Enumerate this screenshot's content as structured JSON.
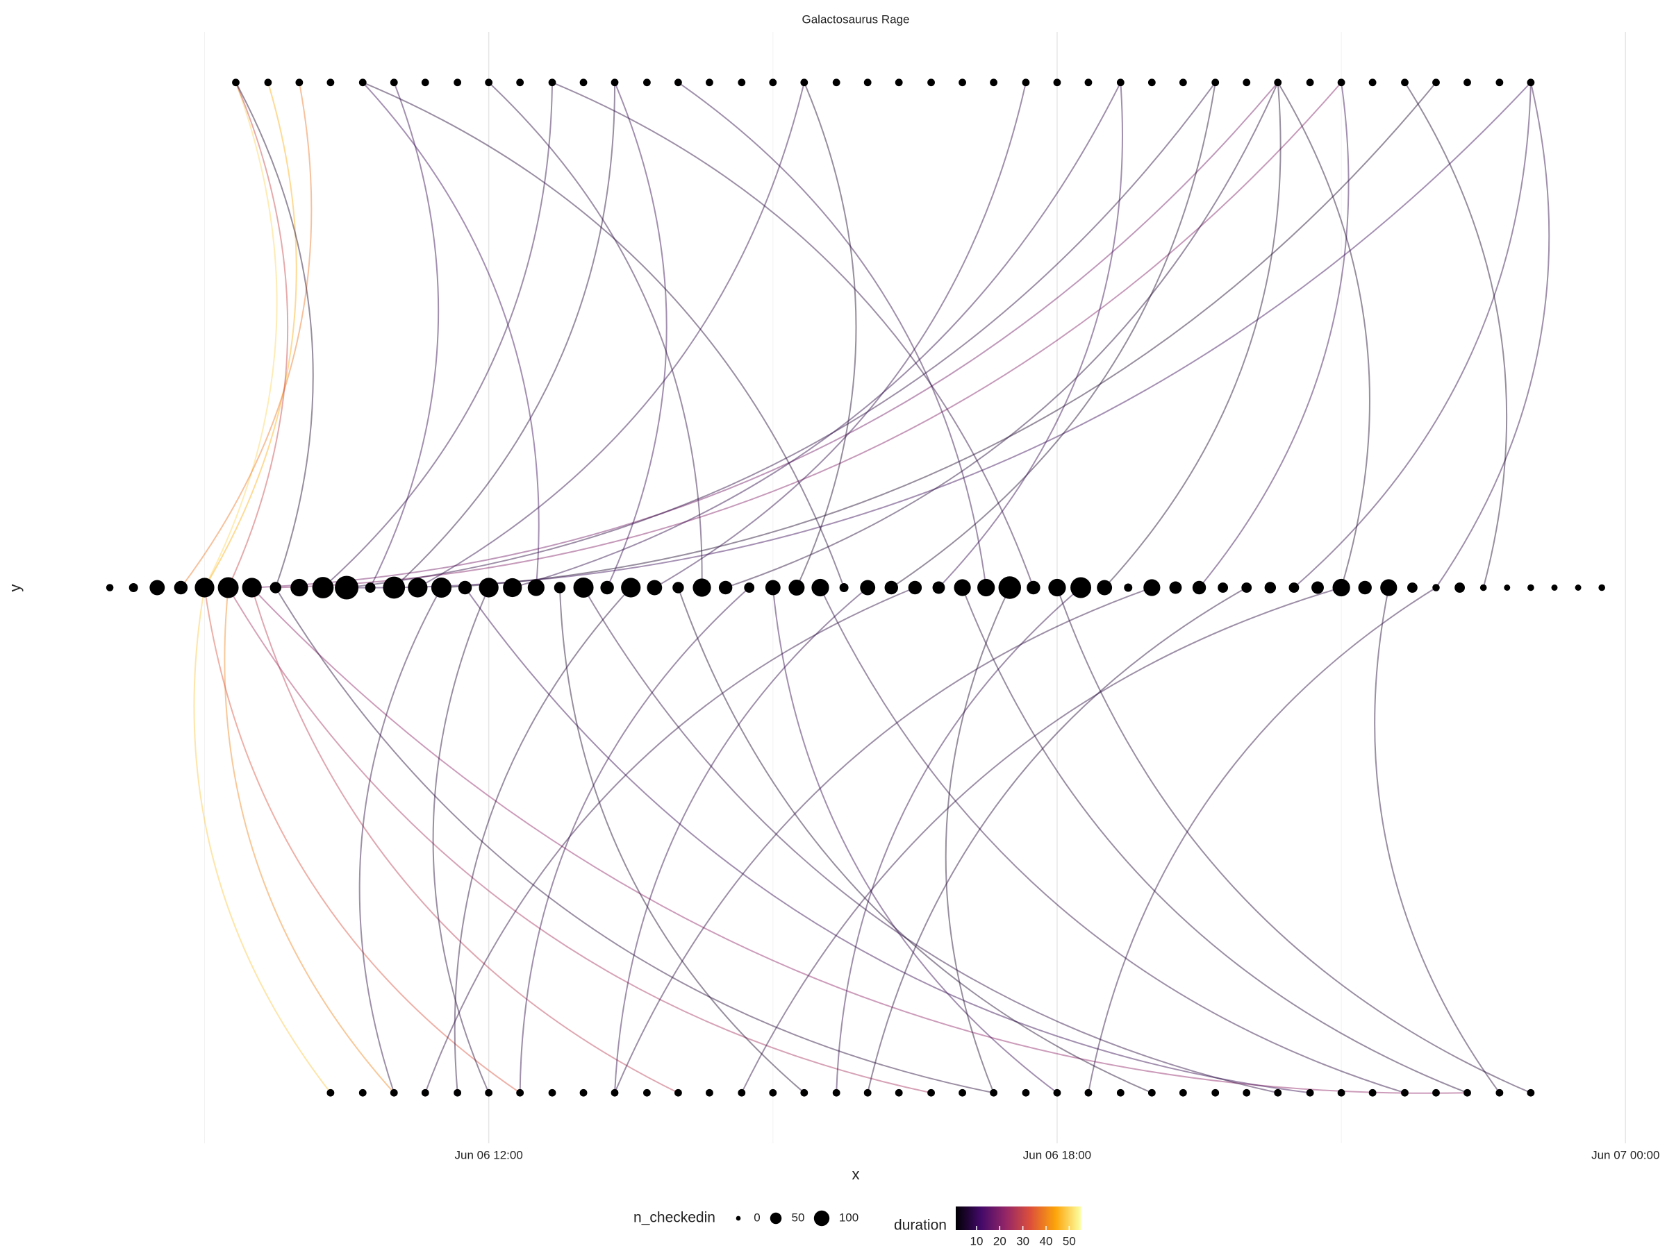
{
  "chart_data": {
    "type": "arc",
    "title": "Galactosaurus Rage",
    "x_label": "x",
    "y_label": "y",
    "xlim": [
      7.2,
      24.35
    ],
    "ylim": [
      -1.1,
      1.1
    ],
    "xticks": [
      {
        "value": 12,
        "label": "Jun 06 12:00"
      },
      {
        "value": 18,
        "label": "Jun 06 18:00"
      },
      {
        "value": 24,
        "label": "Jun 07 00:00"
      }
    ],
    "x_minor_grid": [
      9,
      15,
      21
    ],
    "grid": true,
    "point_color": "#000000",
    "nodes": {
      "middle": {
        "y": 0,
        "x": [
          8,
          8.25,
          8.5,
          8.75,
          9,
          9.25,
          9.5,
          9.75,
          10,
          10.25,
          10.5,
          10.75,
          11,
          11.25,
          11.5,
          11.75,
          12,
          12.25,
          12.5,
          12.75,
          13,
          13.25,
          13.5,
          13.75,
          14,
          14.25,
          14.5,
          14.75,
          15,
          15.25,
          15.5,
          15.75,
          16,
          16.25,
          16.5,
          16.75,
          17,
          17.25,
          17.5,
          17.75,
          18,
          18.25,
          18.5,
          18.75,
          19,
          19.25,
          19.5,
          19.75,
          20,
          20.25,
          20.5,
          20.75,
          21,
          21.25,
          21.5,
          21.75,
          22,
          22.25,
          22.5,
          22.75,
          23,
          23.25,
          23.5,
          23.75
        ],
        "size": [
          8,
          17,
          66,
          50,
          116,
          132,
          116,
          33,
          91,
          140,
          173,
          25,
          149,
          116,
          124,
          50,
          116,
          107,
          83,
          33,
          124,
          50,
          116,
          66,
          33,
          99,
          50,
          25,
          66,
          74,
          91,
          17,
          66,
          50,
          50,
          41,
          83,
          91,
          157,
          50,
          91,
          132,
          66,
          13,
          83,
          41,
          50,
          25,
          25,
          33,
          25,
          41,
          91,
          50,
          83,
          25,
          8,
          25,
          5,
          3,
          5,
          3,
          3,
          5
        ]
      },
      "top": {
        "y": 1,
        "x": [
          9.33,
          9.67,
          10,
          10.33,
          10.67,
          11,
          11.33,
          11.67,
          12,
          12.33,
          12.67,
          13,
          13.33,
          13.67,
          14,
          14.33,
          14.67,
          15,
          15.33,
          15.67,
          16,
          16.33,
          16.67,
          17,
          17.33,
          17.67,
          18,
          18.33,
          18.67,
          19,
          19.33,
          19.67,
          20,
          20.33,
          20.67,
          21,
          21.33,
          21.67,
          22,
          22.33,
          22.67,
          23
        ]
      },
      "bottom": {
        "y": -1,
        "x": [
          10.33,
          10.67,
          11,
          11.33,
          11.67,
          12,
          12.33,
          12.67,
          13,
          13.33,
          13.67,
          14,
          14.33,
          14.67,
          15,
          15.33,
          15.67,
          16,
          16.33,
          16.67,
          17,
          17.33,
          17.67,
          18,
          18.33,
          18.67,
          19,
          19.33,
          19.67,
          20,
          20.33,
          20.67,
          21,
          21.33,
          21.67,
          22,
          22.33,
          22.67,
          23
        ]
      }
    },
    "edges": [
      {
        "from": 9,
        "to": 9.33,
        "y": 1,
        "duration": 50
      },
      {
        "from": 9,
        "to": 9.67,
        "y": 1,
        "duration": 45
      },
      {
        "from": 8.75,
        "to": 10,
        "y": 1,
        "duration": 38
      },
      {
        "from": 9.25,
        "to": 9.33,
        "y": 1,
        "duration": 30
      },
      {
        "from": 9,
        "to": 10.33,
        "y": -1,
        "duration": 48
      },
      {
        "from": 9.25,
        "to": 11,
        "y": -1,
        "duration": 40
      },
      {
        "from": 9,
        "to": 12.33,
        "y": -1,
        "duration": 33
      },
      {
        "from": 9.5,
        "to": 14,
        "y": -1,
        "duration": 28
      },
      {
        "from": 9.25,
        "to": 16.67,
        "y": -1,
        "duration": 25
      },
      {
        "from": 9.5,
        "to": 22.33,
        "y": -1,
        "duration": 22
      },
      {
        "from": 9.75,
        "to": 21,
        "y": 1,
        "duration": 20
      },
      {
        "from": 9.5,
        "to": 20.33,
        "y": 1,
        "duration": 18
      },
      {
        "from": 9.75,
        "to": 9.33,
        "y": 1,
        "duration": 5
      },
      {
        "from": 9.75,
        "to": 17.33,
        "y": -1,
        "duration": 6
      },
      {
        "from": 10.25,
        "to": 12.67,
        "y": 1,
        "duration": 8
      },
      {
        "from": 10.5,
        "to": 19.67,
        "y": 1,
        "duration": 7
      },
      {
        "from": 10.5,
        "to": 23,
        "y": 1,
        "duration": 10
      },
      {
        "from": 10.75,
        "to": 11,
        "y": 1,
        "duration": 9
      },
      {
        "from": 11,
        "to": 13.33,
        "y": 1,
        "duration": 6
      },
      {
        "from": 11.25,
        "to": 15.33,
        "y": 1,
        "duration": 8
      },
      {
        "from": 11.5,
        "to": 22,
        "y": 1,
        "duration": 5
      },
      {
        "from": 11.5,
        "to": 11,
        "y": -1,
        "duration": 7
      },
      {
        "from": 11.75,
        "to": 20.67,
        "y": -1,
        "duration": 9
      },
      {
        "from": 12,
        "to": 12,
        "y": -1,
        "duration": 6
      },
      {
        "from": 12.25,
        "to": 18.67,
        "y": 1,
        "duration": 8
      },
      {
        "from": 12.5,
        "to": 10.67,
        "y": 1,
        "duration": 10
      },
      {
        "from": 12.75,
        "to": 15.33,
        "y": -1,
        "duration": 5
      },
      {
        "from": 13,
        "to": 20.33,
        "y": -1,
        "duration": 7
      },
      {
        "from": 13.25,
        "to": 13.33,
        "y": 1,
        "duration": 9
      },
      {
        "from": 13.5,
        "to": 11.67,
        "y": -1,
        "duration": 6
      },
      {
        "from": 13.75,
        "to": 17.67,
        "y": 1,
        "duration": 8
      },
      {
        "from": 14,
        "to": 19,
        "y": -1,
        "duration": 5
      },
      {
        "from": 14.25,
        "to": 12,
        "y": 1,
        "duration": 7
      },
      {
        "from": 14.5,
        "to": 20.33,
        "y": 1,
        "duration": 6
      },
      {
        "from": 14.75,
        "to": 12.33,
        "y": -1,
        "duration": 8
      },
      {
        "from": 15,
        "to": 18,
        "y": -1,
        "duration": 9
      },
      {
        "from": 15.25,
        "to": 15.33,
        "y": 1,
        "duration": 5
      },
      {
        "from": 15.5,
        "to": 21.67,
        "y": -1,
        "duration": 7
      },
      {
        "from": 15.75,
        "to": 10.67,
        "y": 1,
        "duration": 6
      },
      {
        "from": 16,
        "to": 13.33,
        "y": -1,
        "duration": 8
      },
      {
        "from": 16.25,
        "to": 19.67,
        "y": 1,
        "duration": 5
      },
      {
        "from": 16.5,
        "to": 11.33,
        "y": -1,
        "duration": 7
      },
      {
        "from": 16.75,
        "to": 18.67,
        "y": 1,
        "duration": 9
      },
      {
        "from": 17,
        "to": 22.33,
        "y": -1,
        "duration": 6
      },
      {
        "from": 17.25,
        "to": 14,
        "y": 1,
        "duration": 8
      },
      {
        "from": 17.5,
        "to": 17.33,
        "y": -1,
        "duration": 5
      },
      {
        "from": 17.75,
        "to": 12.67,
        "y": 1,
        "duration": 7
      },
      {
        "from": 18,
        "to": 23,
        "y": -1,
        "duration": 6
      },
      {
        "from": 18.25,
        "to": 15.67,
        "y": -1,
        "duration": 8
      },
      {
        "from": 18.5,
        "to": 20.33,
        "y": 1,
        "duration": 5
      },
      {
        "from": 19,
        "to": 13.33,
        "y": -1,
        "duration": 7
      },
      {
        "from": 19.5,
        "to": 21,
        "y": 1,
        "duration": 9
      },
      {
        "from": 20,
        "to": 16,
        "y": -1,
        "duration": 6
      },
      {
        "from": 20.5,
        "to": 23,
        "y": 1,
        "duration": 8
      },
      {
        "from": 21,
        "to": 20.33,
        "y": 1,
        "duration": 5
      },
      {
        "from": 21,
        "to": 14.67,
        "y": -1,
        "duration": 7
      },
      {
        "from": 21.5,
        "to": 22.67,
        "y": -1,
        "duration": 6
      },
      {
        "from": 22,
        "to": 23,
        "y": 1,
        "duration": 8
      },
      {
        "from": 22,
        "to": 18.33,
        "y": -1,
        "duration": 7
      },
      {
        "from": 22.5,
        "to": 21.67,
        "y": 1,
        "duration": 5
      }
    ],
    "size_legend": {
      "title": "n_checkedin",
      "breaks": [
        0,
        50,
        100
      ]
    },
    "color_legend": {
      "title": "duration",
      "breaks": [
        10,
        20,
        30,
        40,
        50
      ],
      "limits": [
        1,
        55
      ],
      "colormap": [
        "#000004",
        "#420a68",
        "#932667",
        "#dd513a",
        "#fca50a",
        "#fcffa4"
      ]
    }
  }
}
